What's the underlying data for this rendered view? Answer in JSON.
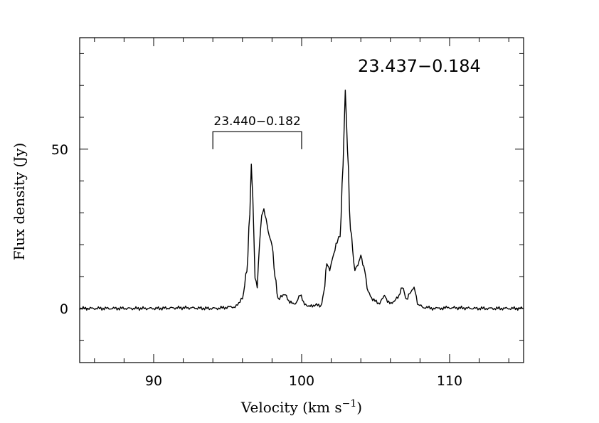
{
  "chart_data": {
    "type": "line",
    "title": "23.437−0.184",
    "xlabel": "Velocity (km s",
    "xlabel_superscript": "−1",
    "xlabel_close": ")",
    "ylabel": "Flux density (Jy)",
    "xlim": [
      85,
      115
    ],
    "ylim": [
      -17,
      85
    ],
    "x_ticks_major": [
      90,
      100,
      110
    ],
    "x_tick_labels": [
      "90",
      "100",
      "110"
    ],
    "y_ticks_major": [
      0,
      50
    ],
    "y_tick_labels": [
      "0",
      "50"
    ],
    "grid": false,
    "annotation": {
      "label": "23.440−0.182",
      "x_start": 94,
      "x_end": 100,
      "y_bar": 55.5,
      "y_foot": 50
    },
    "peaks": [
      {
        "x": 96.6,
        "y": 45.0
      },
      {
        "x": 97.4,
        "y": 31.0
      },
      {
        "x": 98.0,
        "y": 20.0
      },
      {
        "x": 98.9,
        "y": 4.5
      },
      {
        "x": 99.9,
        "y": 4.0
      },
      {
        "x": 101.0,
        "y": 1.0
      },
      {
        "x": 101.7,
        "y": 14.0
      },
      {
        "x": 102.6,
        "y": 23.0
      },
      {
        "x": 102.95,
        "y": 69.0
      },
      {
        "x": 104.0,
        "y": 16.5
      },
      {
        "x": 104.8,
        "y": 3.0
      },
      {
        "x": 105.6,
        "y": 4.0
      },
      {
        "x": 106.8,
        "y": 6.8
      },
      {
        "x": 107.6,
        "y": 6.5
      }
    ],
    "series": [
      {
        "x": [
          85,
          88,
          90,
          92,
          94,
          95.5,
          96.0,
          96.3,
          96.5,
          96.6,
          96.7,
          96.85,
          97.0,
          97.15,
          97.3,
          97.45,
          97.6,
          97.8,
          98.0,
          98.2,
          98.4,
          98.6,
          98.9,
          99.2,
          99.5,
          99.9,
          100.2,
          100.5,
          100.8,
          101.0,
          101.3,
          101.5,
          101.7,
          101.9,
          102.1,
          102.4,
          102.6,
          102.8,
          102.95,
          103.1,
          103.3,
          103.6,
          103.8,
          104.0,
          104.2,
          104.5,
          104.8,
          105.2,
          105.5,
          105.6,
          105.8,
          106.2,
          106.5,
          106.8,
          107.1,
          107.3,
          107.6,
          107.9,
          108.3,
          109,
          110,
          112,
          115
        ],
        "y": [
          0,
          0,
          0,
          0.2,
          0,
          0.5,
          3.0,
          12.0,
          30.0,
          45.0,
          35.0,
          10.0,
          7.0,
          20.0,
          29.0,
          31.0,
          28.0,
          23.0,
          20.0,
          10.0,
          3.0,
          3.5,
          4.5,
          2.0,
          1.2,
          4.0,
          1.5,
          0.8,
          0.5,
          1.0,
          0.8,
          5.0,
          14.0,
          12.0,
          16.0,
          21.0,
          23.0,
          45.0,
          69.0,
          50.0,
          25.0,
          12.0,
          13.5,
          16.5,
          13.0,
          5.0,
          3.0,
          1.5,
          3.5,
          4.0,
          2.0,
          1.8,
          3.5,
          6.8,
          2.5,
          4.5,
          6.5,
          1.0,
          0.3,
          0.0,
          0.2,
          0.0,
          0.0
        ]
      }
    ]
  }
}
